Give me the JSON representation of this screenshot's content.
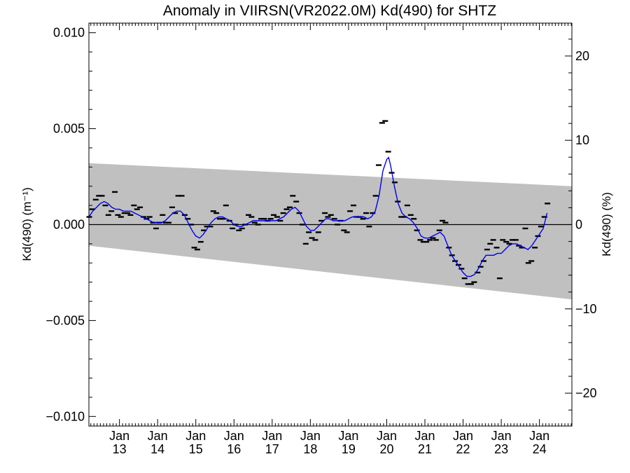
{
  "chart_data": {
    "type": "line",
    "title": "Anomaly in VIIRSN(VR2022.0M) Kd(490) for SHTZ",
    "ylabel": "Kd(490) (m⁻¹)",
    "ylabel_right": "Kd(490) (%)",
    "xlim": [
      2012.2,
      2024.85
    ],
    "ylim": [
      -0.0105,
      0.0105
    ],
    "ylim_right": [
      -23.9,
      23.9
    ],
    "y_ticks": [
      {
        "value": -0.01,
        "label": "−0.010"
      },
      {
        "value": -0.005,
        "label": "−0.005"
      },
      {
        "value": 0.0,
        "label": "0.000"
      },
      {
        "value": 0.005,
        "label": "0.005"
      },
      {
        "value": 0.01,
        "label": "0.010"
      }
    ],
    "y_ticks_right": [
      {
        "value": -20,
        "label": "−20"
      },
      {
        "value": -10,
        "label": "−10"
      },
      {
        "value": 0,
        "label": "0"
      },
      {
        "value": 10,
        "label": "10"
      },
      {
        "value": 20,
        "label": "20"
      }
    ],
    "x_ticks": [
      {
        "value": 2013.0,
        "month": "Jan",
        "year": "13"
      },
      {
        "value": 2014.0,
        "month": "Jan",
        "year": "14"
      },
      {
        "value": 2015.0,
        "month": "Jan",
        "year": "15"
      },
      {
        "value": 2016.0,
        "month": "Jan",
        "year": "16"
      },
      {
        "value": 2017.0,
        "month": "Jan",
        "year": "17"
      },
      {
        "value": 2018.0,
        "month": "Jan",
        "year": "18"
      },
      {
        "value": 2019.0,
        "month": "Jan",
        "year": "19"
      },
      {
        "value": 2020.0,
        "month": "Jan",
        "year": "20"
      },
      {
        "value": 2021.0,
        "month": "Jan",
        "year": "21"
      },
      {
        "value": 2022.0,
        "month": "Jan",
        "year": "22"
      },
      {
        "value": 2023.0,
        "month": "Jan",
        "year": "23"
      },
      {
        "value": 2024.0,
        "month": "Jan",
        "year": "24"
      }
    ],
    "band": {
      "x": [
        2012.2,
        2024.85
      ],
      "upper": [
        0.0032,
        0.002
      ],
      "lower": [
        -0.0011,
        -0.0039
      ]
    },
    "zero_line": 0.0,
    "series": [
      {
        "kind": "monthly",
        "values": [
          [
            2012.21,
            0.0004
          ],
          [
            2012.29,
            0.0008
          ],
          [
            2012.38,
            0.0013
          ],
          [
            2012.46,
            0.0015
          ],
          [
            2012.54,
            0.0015
          ],
          [
            2012.63,
            0.001
          ],
          [
            2012.71,
            0.0005
          ],
          [
            2012.79,
            0.0007
          ],
          [
            2012.88,
            0.0017
          ],
          [
            2012.96,
            0.0005
          ],
          [
            2013.04,
            0.0004
          ],
          [
            2013.13,
            0.0006
          ],
          [
            2013.21,
            0.0006
          ],
          [
            2013.29,
            0.0005
          ],
          [
            2013.38,
            0.001
          ],
          [
            2013.46,
            0.0008
          ],
          [
            2013.54,
            0.0009
          ],
          [
            2013.63,
            0.0004
          ],
          [
            2013.71,
            0.0003
          ],
          [
            2013.79,
            0.0004
          ],
          [
            2013.88,
            0.0001
          ],
          [
            2013.96,
            -0.0002
          ],
          [
            2014.04,
            0.0001
          ],
          [
            2014.13,
            0.0005
          ],
          [
            2014.21,
            0.0001
          ],
          [
            2014.29,
            0.0001
          ],
          [
            2014.38,
            0.0009
          ],
          [
            2014.46,
            0.0006
          ],
          [
            2014.54,
            0.0015
          ],
          [
            2014.63,
            0.0015
          ],
          [
            2014.71,
            0.0005
          ],
          [
            2014.79,
            0.0003
          ],
          [
            2014.88,
            0.0
          ],
          [
            2014.96,
            -0.0012
          ],
          [
            2015.04,
            -0.0013
          ],
          [
            2015.13,
            -0.0009
          ],
          [
            2015.21,
            -0.0003
          ],
          [
            2015.29,
            -0.0001
          ],
          [
            2015.38,
            -0.0001
          ],
          [
            2015.46,
            0.0007
          ],
          [
            2015.54,
            0.0006
          ],
          [
            2015.63,
            0.0003
          ],
          [
            2015.71,
            0.0003
          ],
          [
            2015.79,
            0.001
          ],
          [
            2015.88,
            0.0002
          ],
          [
            2015.96,
            -0.0002
          ],
          [
            2016.04,
            0.0
          ],
          [
            2016.13,
            -0.0003
          ],
          [
            2016.21,
            -0.0002
          ],
          [
            2016.29,
            0.0
          ],
          [
            2016.38,
            0.0005
          ],
          [
            2016.46,
            0.0004
          ],
          [
            2016.54,
            0.0001
          ],
          [
            2016.63,
            0.0
          ],
          [
            2016.71,
            0.0003
          ],
          [
            2016.79,
            0.0003
          ],
          [
            2016.88,
            0.0002
          ],
          [
            2016.96,
            0.0003
          ],
          [
            2017.04,
            0.0005
          ],
          [
            2017.13,
            0.0004
          ],
          [
            2017.21,
            0.0002
          ],
          [
            2017.29,
            0.0006
          ],
          [
            2017.38,
            0.0008
          ],
          [
            2017.46,
            0.0009
          ],
          [
            2017.54,
            0.0015
          ],
          [
            2017.63,
            0.0012
          ],
          [
            2017.71,
            0.0006
          ],
          [
            2017.79,
            0.0
          ],
          [
            2017.88,
            -0.001
          ],
          [
            2017.96,
            -0.0004
          ],
          [
            2018.04,
            -0.0007
          ],
          [
            2018.13,
            -0.0008
          ],
          [
            2018.21,
            -0.0004
          ],
          [
            2018.29,
            0.0002
          ],
          [
            2018.38,
            0.0006
          ],
          [
            2018.46,
            0.0004
          ],
          [
            2018.54,
            0.0005
          ],
          [
            2018.63,
            0.0003
          ],
          [
            2018.71,
            0.0
          ],
          [
            2018.79,
            0.0002
          ],
          [
            2018.88,
            -0.0003
          ],
          [
            2018.96,
            -0.0004
          ],
          [
            2019.04,
            0.0007
          ],
          [
            2019.13,
            0.001
          ],
          [
            2019.21,
            0.0004
          ],
          [
            2019.29,
            0.0004
          ],
          [
            2019.38,
            0.0003
          ],
          [
            2019.46,
            0.0006
          ],
          [
            2019.54,
            -0.0001
          ],
          [
            2019.63,
            0.0006
          ],
          [
            2019.71,
            0.0015
          ],
          [
            2019.79,
            0.0031
          ],
          [
            2019.88,
            0.0053
          ],
          [
            2019.96,
            0.0054
          ],
          [
            2020.04,
            0.0038
          ],
          [
            2020.13,
            0.0027
          ],
          [
            2020.21,
            0.0022
          ],
          [
            2020.29,
            0.0012
          ],
          [
            2020.38,
            0.0004
          ],
          [
            2020.46,
            0.0004
          ],
          [
            2020.54,
            0.001
          ],
          [
            2020.63,
            0.0005
          ],
          [
            2020.71,
            0.0003
          ],
          [
            2020.79,
            -0.0003
          ],
          [
            2020.88,
            -0.0008
          ],
          [
            2020.96,
            -0.0009
          ],
          [
            2021.04,
            -0.0009
          ],
          [
            2021.13,
            -0.0008
          ],
          [
            2021.21,
            -0.0007
          ],
          [
            2021.29,
            -0.0008
          ],
          [
            2021.38,
            -0.0003
          ],
          [
            2021.46,
            0.0002
          ],
          [
            2021.54,
            0.0001
          ],
          [
            2021.63,
            -0.0012
          ],
          [
            2021.71,
            -0.0016
          ],
          [
            2021.79,
            -0.0019
          ],
          [
            2021.88,
            -0.0021
          ],
          [
            2021.96,
            -0.0023
          ],
          [
            2022.04,
            -0.0028
          ],
          [
            2022.13,
            -0.0031
          ],
          [
            2022.21,
            -0.0031
          ],
          [
            2022.29,
            -0.003
          ],
          [
            2022.38,
            -0.0025
          ],
          [
            2022.46,
            -0.0022
          ],
          [
            2022.54,
            -0.0019
          ],
          [
            2022.63,
            -0.0013
          ],
          [
            2022.71,
            -0.001
          ],
          [
            2022.79,
            -0.0008
          ],
          [
            2022.88,
            -0.0012
          ],
          [
            2022.96,
            -0.0028
          ],
          [
            2023.04,
            -0.0008
          ],
          [
            2023.13,
            -0.0009
          ],
          [
            2023.21,
            -0.001
          ],
          [
            2023.29,
            -0.0008
          ],
          [
            2023.38,
            -0.0008
          ],
          [
            2023.46,
            -0.0011
          ],
          [
            2023.54,
            -0.0012
          ],
          [
            2023.63,
            -0.0002
          ],
          [
            2023.71,
            -0.002
          ],
          [
            2023.79,
            -0.0019
          ],
          [
            2023.88,
            -0.0012
          ],
          [
            2023.96,
            -0.0006
          ],
          [
            2024.04,
            -0.0001
          ],
          [
            2024.13,
            0.0004
          ],
          [
            2024.21,
            0.0011
          ]
        ]
      },
      {
        "kind": "smoothed",
        "color": "#0000ee",
        "values": [
          [
            2012.2,
            0.0004
          ],
          [
            2012.3,
            0.0007
          ],
          [
            2012.4,
            0.0009
          ],
          [
            2012.5,
            0.0011
          ],
          [
            2012.6,
            0.0012
          ],
          [
            2012.7,
            0.0011
          ],
          [
            2012.8,
            0.0009
          ],
          [
            2012.9,
            0.0008
          ],
          [
            2013.0,
            0.0008
          ],
          [
            2013.1,
            0.0007
          ],
          [
            2013.2,
            0.0007
          ],
          [
            2013.3,
            0.0007
          ],
          [
            2013.4,
            0.0006
          ],
          [
            2013.5,
            0.0005
          ],
          [
            2013.6,
            0.0004
          ],
          [
            2013.7,
            0.0003
          ],
          [
            2013.8,
            0.0002
          ],
          [
            2013.9,
            0.0001
          ],
          [
            2014.0,
            0.0001
          ],
          [
            2014.1,
            0.0001
          ],
          [
            2014.2,
            0.0002
          ],
          [
            2014.3,
            0.0004
          ],
          [
            2014.4,
            0.0006
          ],
          [
            2014.5,
            0.0007
          ],
          [
            2014.6,
            0.0007
          ],
          [
            2014.7,
            0.0005
          ],
          [
            2014.8,
            0.0001
          ],
          [
            2014.9,
            -0.0003
          ],
          [
            2015.0,
            -0.0006
          ],
          [
            2015.1,
            -0.0007
          ],
          [
            2015.2,
            -0.0005
          ],
          [
            2015.3,
            -0.0002
          ],
          [
            2015.4,
            0.0001
          ],
          [
            2015.5,
            0.0003
          ],
          [
            2015.6,
            0.0004
          ],
          [
            2015.7,
            0.0004
          ],
          [
            2015.8,
            0.0003
          ],
          [
            2015.9,
            0.0002
          ],
          [
            2016.0,
            0.0
          ],
          [
            2016.1,
            -0.0001
          ],
          [
            2016.2,
            -0.0001
          ],
          [
            2016.3,
            0.0
          ],
          [
            2016.4,
            0.0001
          ],
          [
            2016.5,
            0.0002
          ],
          [
            2016.6,
            0.0002
          ],
          [
            2016.7,
            0.0002
          ],
          [
            2016.8,
            0.0002
          ],
          [
            2016.9,
            0.0002
          ],
          [
            2017.0,
            0.0002
          ],
          [
            2017.1,
            0.0002
          ],
          [
            2017.2,
            0.0003
          ],
          [
            2017.3,
            0.0004
          ],
          [
            2017.4,
            0.0006
          ],
          [
            2017.5,
            0.0008
          ],
          [
            2017.6,
            0.0009
          ],
          [
            2017.7,
            0.0007
          ],
          [
            2017.8,
            0.0003
          ],
          [
            2017.9,
            -0.0001
          ],
          [
            2018.0,
            -0.0003
          ],
          [
            2018.1,
            -0.0003
          ],
          [
            2018.2,
            -0.0001
          ],
          [
            2018.3,
            0.0001
          ],
          [
            2018.4,
            0.0003
          ],
          [
            2018.5,
            0.0003
          ],
          [
            2018.6,
            0.0002
          ],
          [
            2018.7,
            0.0002
          ],
          [
            2018.8,
            0.0002
          ],
          [
            2018.9,
            0.0002
          ],
          [
            2019.0,
            0.0003
          ],
          [
            2019.1,
            0.0004
          ],
          [
            2019.2,
            0.0004
          ],
          [
            2019.3,
            0.0004
          ],
          [
            2019.4,
            0.0004
          ],
          [
            2019.5,
            0.0003
          ],
          [
            2019.6,
            0.0004
          ],
          [
            2019.7,
            0.0007
          ],
          [
            2019.8,
            0.0015
          ],
          [
            2019.9,
            0.0028
          ],
          [
            2020.0,
            0.0034
          ],
          [
            2020.05,
            0.0035
          ],
          [
            2020.1,
            0.0031
          ],
          [
            2020.2,
            0.002
          ],
          [
            2020.3,
            0.0011
          ],
          [
            2020.4,
            0.0006
          ],
          [
            2020.5,
            0.0004
          ],
          [
            2020.6,
            0.0003
          ],
          [
            2020.7,
            0.0001
          ],
          [
            2020.8,
            -0.0002
          ],
          [
            2020.9,
            -0.0006
          ],
          [
            2021.0,
            -0.0007
          ],
          [
            2021.1,
            -0.0007
          ],
          [
            2021.2,
            -0.0006
          ],
          [
            2021.3,
            -0.0005
          ],
          [
            2021.4,
            -0.0004
          ],
          [
            2021.5,
            -0.0006
          ],
          [
            2021.6,
            -0.0011
          ],
          [
            2021.7,
            -0.0016
          ],
          [
            2021.8,
            -0.0019
          ],
          [
            2021.9,
            -0.0022
          ],
          [
            2022.0,
            -0.0025
          ],
          [
            2022.1,
            -0.0027
          ],
          [
            2022.2,
            -0.0027
          ],
          [
            2022.3,
            -0.0026
          ],
          [
            2022.4,
            -0.0023
          ],
          [
            2022.5,
            -0.0019
          ],
          [
            2022.6,
            -0.0016
          ],
          [
            2022.7,
            -0.0016
          ],
          [
            2022.8,
            -0.0016
          ],
          [
            2022.9,
            -0.0015
          ],
          [
            2023.0,
            -0.0015
          ],
          [
            2023.1,
            -0.0013
          ],
          [
            2023.2,
            -0.0011
          ],
          [
            2023.3,
            -0.001
          ],
          [
            2023.4,
            -0.001
          ],
          [
            2023.5,
            -0.0011
          ],
          [
            2023.6,
            -0.0012
          ],
          [
            2023.7,
            -0.0013
          ],
          [
            2023.8,
            -0.0011
          ],
          [
            2023.9,
            -0.0008
          ],
          [
            2024.0,
            -0.0005
          ],
          [
            2024.1,
            -0.0002
          ],
          [
            2024.15,
            0.0002
          ],
          [
            2024.2,
            0.0006
          ]
        ]
      }
    ]
  }
}
